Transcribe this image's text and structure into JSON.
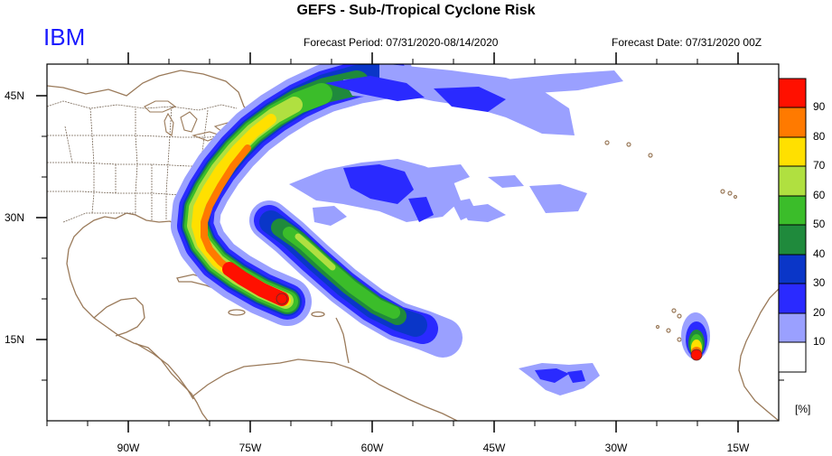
{
  "header": {
    "title": "GEFS - Sub-/Tropical Cyclone Risk",
    "brand": "IBM",
    "forecast_period": "Forecast Period: 07/31/2020-08/14/2020",
    "forecast_date": "Forecast Date: 07/31/2020 00Z"
  },
  "axes": {
    "x_ticks": [
      "90W",
      "75W",
      "60W",
      "45W",
      "30W",
      "15W"
    ],
    "y_ticks": [
      "45N",
      "30N",
      "15N"
    ]
  },
  "legend": {
    "units": "[%]",
    "levels": [
      "10",
      "20",
      "30",
      "40",
      "50",
      "60",
      "70",
      "80",
      "90"
    ],
    "colors": [
      "#ffffff",
      "#9aa0ff",
      "#2a2aff",
      "#0a36c8",
      "#1f8a3c",
      "#3bbd2a",
      "#b0e040",
      "#ffe000",
      "#ff7a00",
      "#ff1000"
    ]
  },
  "colors": {
    "coast": "#9a7a5a",
    "border": "#7a6a5a"
  }
}
